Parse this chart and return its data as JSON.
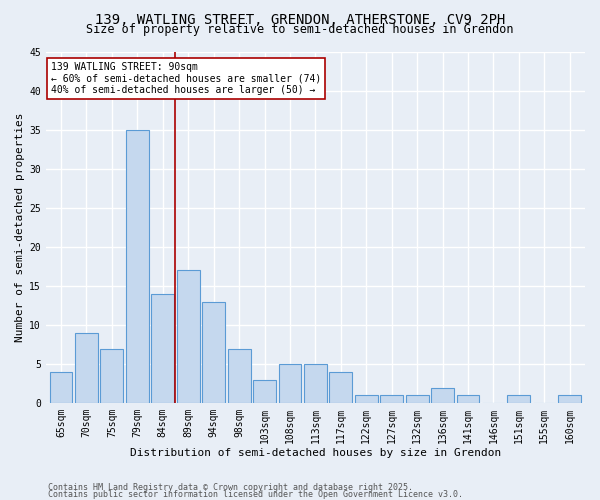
{
  "title": "139, WATLING STREET, GRENDON, ATHERSTONE, CV9 2PH",
  "subtitle": "Size of property relative to semi-detached houses in Grendon",
  "xlabel": "Distribution of semi-detached houses by size in Grendon",
  "ylabel": "Number of semi-detached properties",
  "categories": [
    "65sqm",
    "70sqm",
    "75sqm",
    "79sqm",
    "84sqm",
    "89sqm",
    "94sqm",
    "98sqm",
    "103sqm",
    "108sqm",
    "113sqm",
    "117sqm",
    "122sqm",
    "127sqm",
    "132sqm",
    "136sqm",
    "141sqm",
    "146sqm",
    "151sqm",
    "155sqm",
    "160sqm"
  ],
  "values": [
    4,
    9,
    7,
    35,
    14,
    17,
    13,
    7,
    3,
    5,
    5,
    4,
    1,
    1,
    1,
    2,
    1,
    0,
    1,
    0,
    1
  ],
  "bar_color": "#c5d8ee",
  "bar_edge_color": "#5b9bd5",
  "vline_color": "#aa0000",
  "vline_pos": 4.5,
  "annotation_text": "139 WATLING STREET: 90sqm\n← 60% of semi-detached houses are smaller (74)\n40% of semi-detached houses are larger (50) →",
  "annotation_box_color": "#ffffff",
  "annotation_box_edge": "#aa0000",
  "background_color": "#e8eef6",
  "grid_color": "#ffffff",
  "ylim": [
    0,
    45
  ],
  "yticks": [
    0,
    5,
    10,
    15,
    20,
    25,
    30,
    35,
    40,
    45
  ],
  "footer_line1": "Contains HM Land Registry data © Crown copyright and database right 2025.",
  "footer_line2": "Contains public sector information licensed under the Open Government Licence v3.0.",
  "title_fontsize": 10,
  "subtitle_fontsize": 8.5,
  "axis_label_fontsize": 8,
  "tick_fontsize": 7,
  "annotation_fontsize": 7,
  "footer_fontsize": 6
}
